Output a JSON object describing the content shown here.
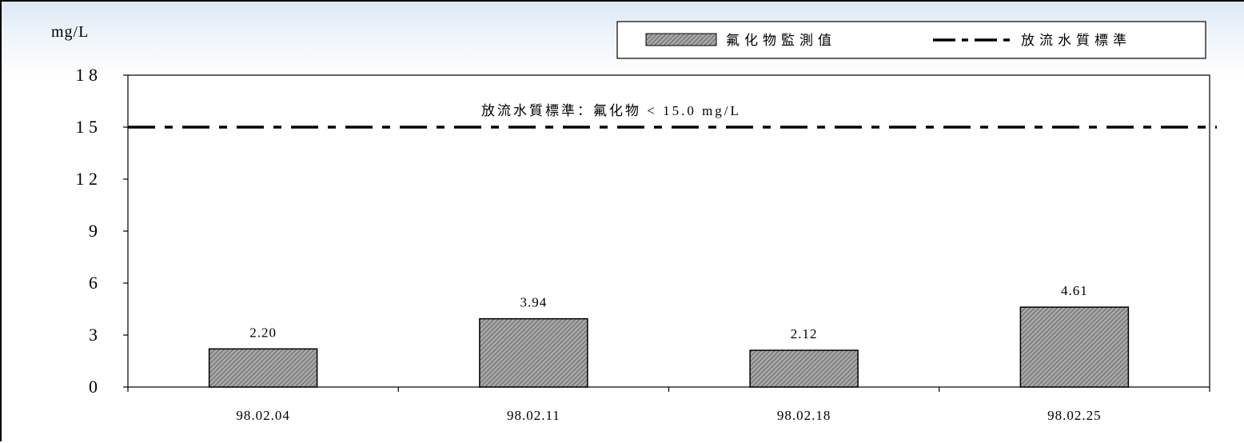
{
  "chart_data": {
    "type": "bar",
    "y_unit": "mg/L",
    "categories": [
      "98.02.04",
      "98.02.11",
      "98.02.18",
      "98.02.25"
    ],
    "series": [
      {
        "name": "氟化物監測值",
        "values": [
          2.2,
          3.94,
          2.12,
          4.61
        ],
        "value_labels": [
          "2.20",
          "3.94",
          "2.12",
          "4.61"
        ]
      }
    ],
    "reference_line": {
      "name": "放流水質標準",
      "value": 15
    },
    "annotation": "放流水質標準：氟化物 < 15.0 mg/L",
    "ylim": [
      0,
      18
    ],
    "yticks": [
      0,
      3,
      6,
      9,
      12,
      15,
      18
    ],
    "legend_position": "top-right",
    "grid": false,
    "colors": {
      "bar_fill": "#9a9a9a",
      "bar_hatch": "#555555",
      "line": "#000000"
    }
  }
}
